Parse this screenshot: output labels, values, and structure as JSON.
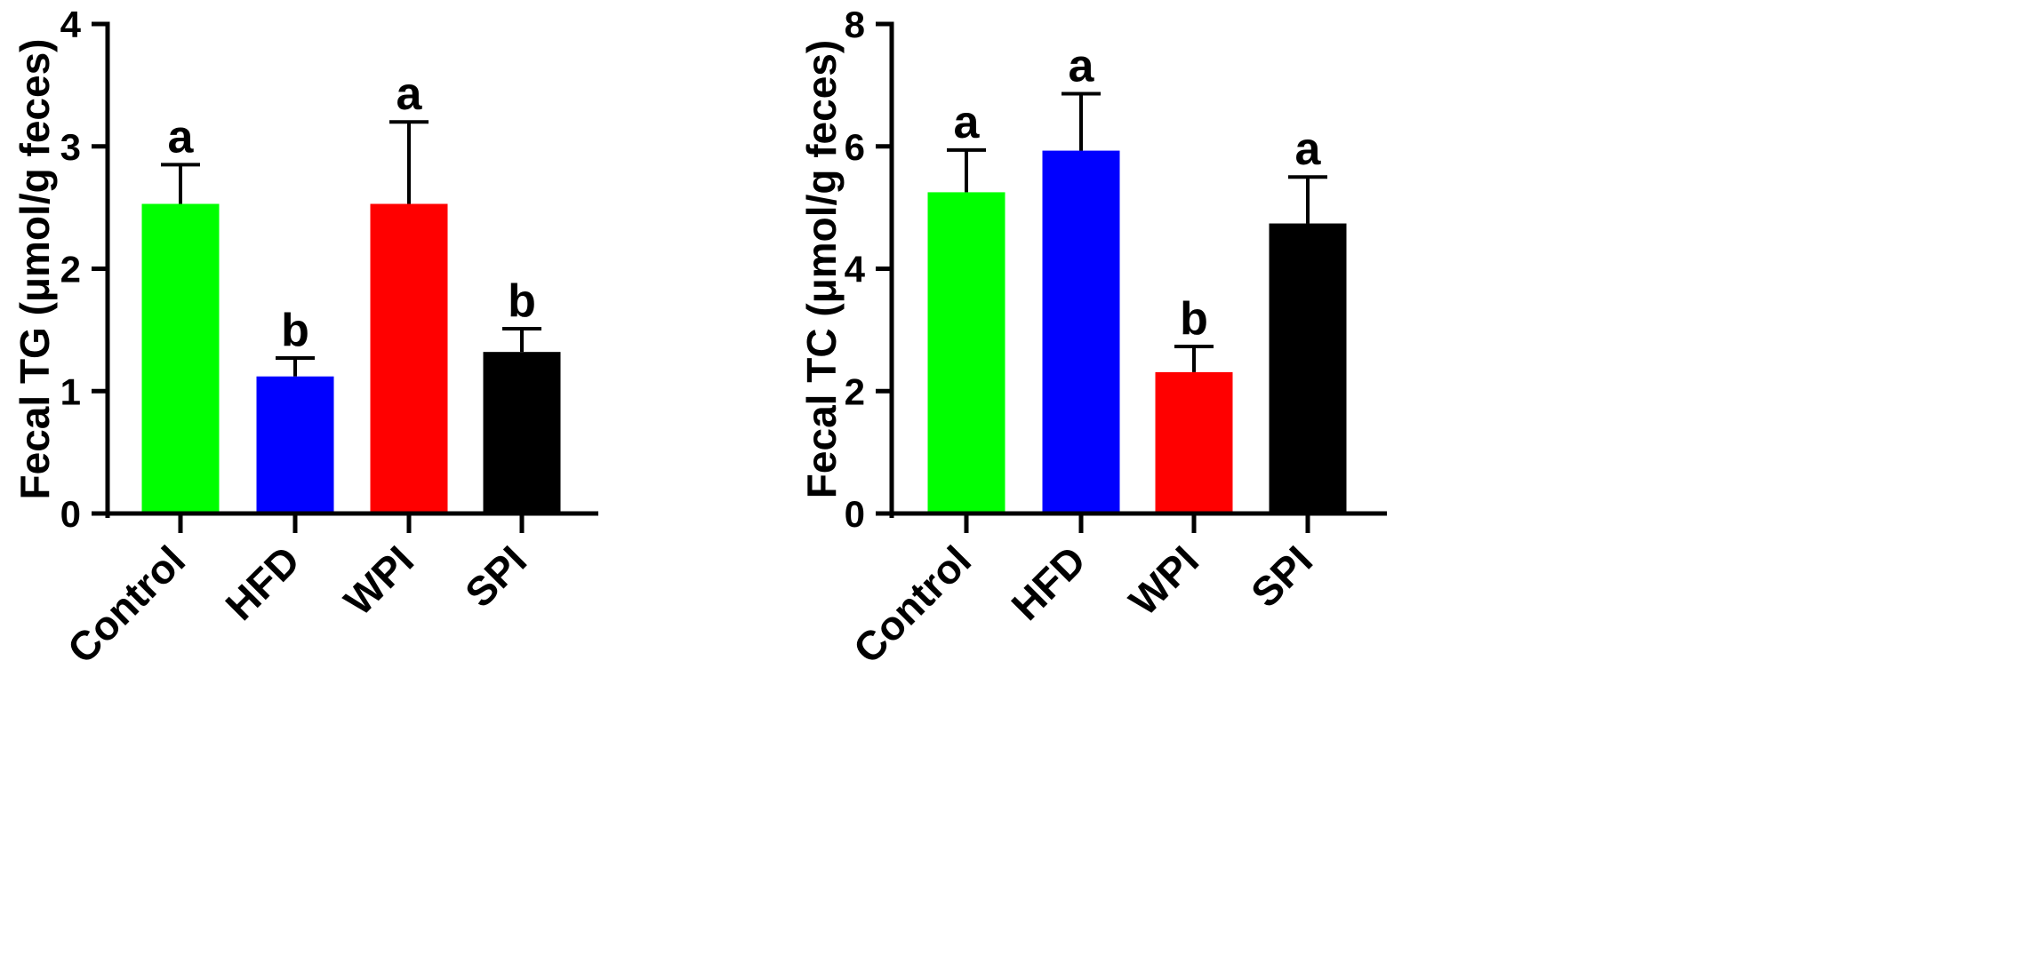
{
  "chart_data": [
    {
      "type": "bar",
      "title": "",
      "xlabel": "",
      "ylabel": "Fecal TG (μmol/g feces)",
      "ylim": [
        0,
        4
      ],
      "yticks": [
        0,
        1,
        2,
        3,
        4
      ],
      "categories": [
        "Control",
        "HFD",
        "WPI",
        "SPI"
      ],
      "values": [
        2.53,
        1.12,
        2.53,
        1.32
      ],
      "errors": [
        0.32,
        0.15,
        0.67,
        0.19
      ],
      "letters": [
        "a",
        "b",
        "a",
        "b"
      ],
      "colors": [
        "#00ff00",
        "#0000ff",
        "#ff0000",
        "#000000"
      ],
      "grid": false
    },
    {
      "type": "bar",
      "title": "",
      "xlabel": "",
      "ylabel": "Fecal TC (μmol/g feces)",
      "ylim": [
        0,
        8
      ],
      "yticks": [
        0,
        2,
        4,
        6,
        8
      ],
      "categories": [
        "Control",
        "HFD",
        "WPI",
        "SPI"
      ],
      "values": [
        5.25,
        5.93,
        2.31,
        4.74
      ],
      "errors": [
        0.69,
        0.93,
        0.42,
        0.76
      ],
      "letters": [
        "a",
        "a",
        "b",
        "a"
      ],
      "colors": [
        "#00ff00",
        "#0000ff",
        "#ff0000",
        "#000000"
      ],
      "grid": false
    }
  ]
}
